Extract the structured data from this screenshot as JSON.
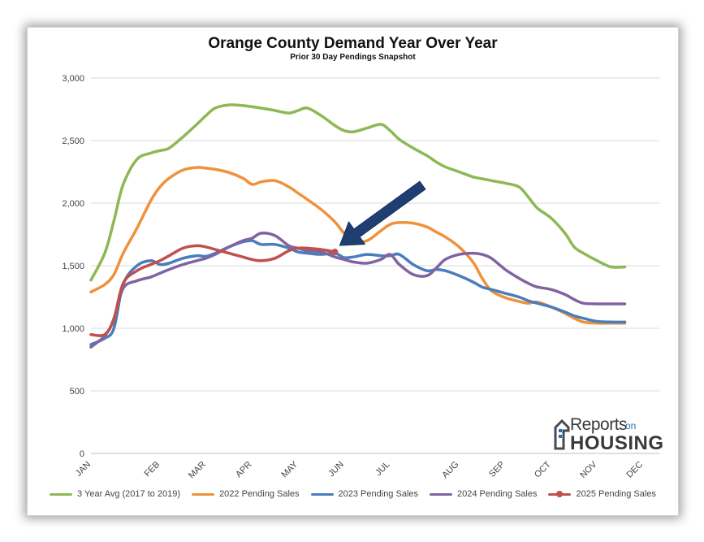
{
  "chart_data": {
    "type": "line",
    "title": "Orange County Demand Year Over Year",
    "subtitle": "Prior 30 Day Pendings Snapshot",
    "xlabel": "",
    "ylabel": "",
    "x": [
      0,
      0.3,
      0.5,
      0.7,
      1,
      1.3,
      1.5,
      1.7,
      2,
      2.3,
      2.5,
      2.7,
      3,
      3.3,
      3.5,
      3.7,
      4,
      4.3,
      4.5,
      4.7,
      5,
      5.3,
      5.5,
      5.7,
      6,
      6.3,
      6.5,
      6.7,
      7,
      7.3,
      7.5,
      7.7,
      8,
      8.3,
      8.5,
      8.7,
      9,
      9.3,
      9.5,
      9.7,
      10,
      10.3,
      10.5,
      10.7,
      11,
      11.3,
      11.6
    ],
    "x_ticks": [
      {
        "label": "JAN",
        "pos": 0
      },
      {
        "label": "FEB",
        "pos": 1.5
      },
      {
        "label": "MAR",
        "pos": 2.5
      },
      {
        "label": "APR",
        "pos": 3.5
      },
      {
        "label": "MAY",
        "pos": 4.5
      },
      {
        "label": "JUN",
        "pos": 5.5
      },
      {
        "label": "JUL",
        "pos": 6.5
      },
      {
        "label": "AUG",
        "pos": 8
      },
      {
        "label": "SEP",
        "pos": 9
      },
      {
        "label": "OCT",
        "pos": 10
      },
      {
        "label": "NOV",
        "pos": 11
      },
      {
        "label": "DEC",
        "pos": 12
      }
    ],
    "xlim": [
      0,
      12.35
    ],
    "ylim": [
      0,
      3000
    ],
    "y_ticks": [
      {
        "label": "0",
        "value": 0
      },
      {
        "label": "500",
        "value": 500
      },
      {
        "label": "1,000",
        "value": 1000
      },
      {
        "label": "1,500",
        "value": 1500
      },
      {
        "label": "2,000",
        "value": 2000
      },
      {
        "label": "2,500",
        "value": 2500
      },
      {
        "label": "3,000",
        "value": 3000
      }
    ],
    "grid": true,
    "legend_position": "bottom",
    "series": [
      {
        "name": "3 Year Avg (2017 to 2019)",
        "color": "#8db855",
        "marker": false,
        "values": [
          1385,
          1600,
          1860,
          2150,
          2350,
          2400,
          2420,
          2440,
          2530,
          2630,
          2700,
          2760,
          2785,
          2780,
          2770,
          2760,
          2740,
          2720,
          2740,
          2760,
          2700,
          2620,
          2580,
          2570,
          2600,
          2630,
          2580,
          2510,
          2440,
          2380,
          2330,
          2290,
          2250,
          2210,
          2195,
          2180,
          2160,
          2130,
          2050,
          1960,
          1880,
          1760,
          1650,
          1600,
          1540,
          1490,
          1490
        ]
      },
      {
        "name": "2022 Pending Sales",
        "color": "#f0913c",
        "marker": false,
        "values": [
          1290,
          1350,
          1430,
          1600,
          1800,
          2020,
          2130,
          2200,
          2265,
          2285,
          2280,
          2270,
          2245,
          2200,
          2150,
          2170,
          2180,
          2130,
          2080,
          2030,
          1950,
          1850,
          1760,
          1700,
          1700,
          1780,
          1830,
          1845,
          1840,
          1810,
          1770,
          1730,
          1650,
          1530,
          1400,
          1300,
          1245,
          1215,
          1200,
          1210,
          1170,
          1120,
          1080,
          1050,
          1040,
          1040,
          1040
        ]
      },
      {
        "name": "2023 Pending Sales",
        "color": "#4a7ebb",
        "marker": false,
        "values": [
          870,
          920,
          1000,
          1350,
          1500,
          1540,
          1510,
          1520,
          1560,
          1580,
          1575,
          1600,
          1650,
          1690,
          1700,
          1670,
          1670,
          1640,
          1610,
          1600,
          1590,
          1600,
          1565,
          1570,
          1590,
          1580,
          1580,
          1590,
          1510,
          1460,
          1470,
          1460,
          1420,
          1370,
          1330,
          1310,
          1280,
          1250,
          1220,
          1200,
          1170,
          1130,
          1100,
          1080,
          1055,
          1050,
          1050
        ]
      },
      {
        "name": "2024 Pending Sales",
        "color": "#8064a2",
        "marker": false,
        "values": [
          850,
          940,
          1070,
          1320,
          1380,
          1410,
          1440,
          1470,
          1510,
          1540,
          1560,
          1590,
          1650,
          1700,
          1720,
          1760,
          1740,
          1660,
          1640,
          1620,
          1610,
          1570,
          1550,
          1530,
          1520,
          1550,
          1590,
          1510,
          1430,
          1420,
          1480,
          1550,
          1590,
          1600,
          1590,
          1560,
          1470,
          1400,
          1360,
          1330,
          1310,
          1270,
          1230,
          1200,
          1195,
          1195,
          1195
        ]
      },
      {
        "name": "2025 Pending Sales",
        "color": "#c0504d",
        "marker": true,
        "values": [
          950,
          950,
          1080,
          1360,
          1460,
          1510,
          1540,
          1580,
          1640,
          1660,
          1650,
          1630,
          1600,
          1570,
          1550,
          1540,
          1560,
          1620,
          1640,
          1640,
          1630,
          1610,
          null,
          null,
          null,
          null,
          null,
          null,
          null,
          null,
          null,
          null,
          null,
          null,
          null,
          null,
          null,
          null,
          null,
          null,
          null,
          null,
          null,
          null,
          null,
          null,
          null
        ]
      }
    ],
    "annotations": [
      {
        "type": "arrow",
        "color": "#1f3f73",
        "points_to_series": "2025 Pending Sales",
        "points_to_x": 5.3,
        "points_to_y": 1610
      }
    ]
  },
  "logo": {
    "reports": "Reports",
    "on": "on",
    "housing": "HOUSING"
  }
}
